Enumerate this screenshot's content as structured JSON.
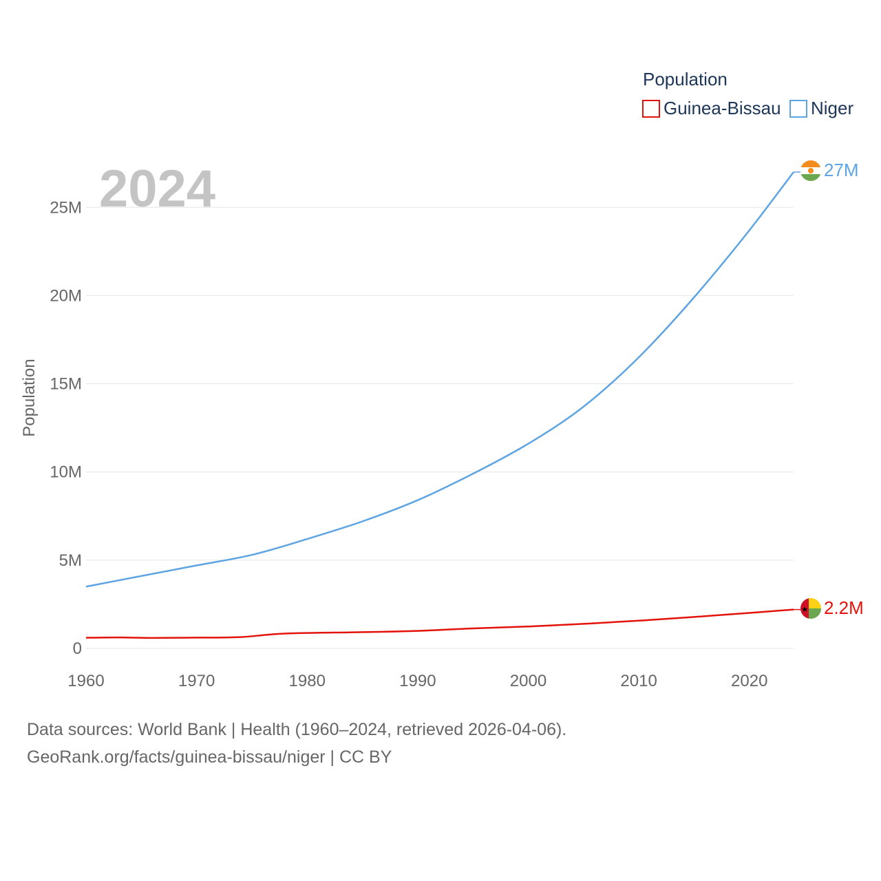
{
  "chart_data": {
    "type": "line",
    "title": "Population",
    "ylabel": "Population",
    "xlabel": "",
    "year_label": "2024",
    "xlim": [
      1960,
      2024
    ],
    "ylim": [
      0,
      27000000
    ],
    "x_ticks": [
      1960,
      1970,
      1980,
      1990,
      2000,
      2010,
      2020
    ],
    "x_tick_labels": [
      "1960",
      "1970",
      "1980",
      "1990",
      "2000",
      "2010",
      "2020"
    ],
    "y_ticks": [
      0,
      5000000,
      10000000,
      15000000,
      20000000,
      25000000
    ],
    "y_tick_labels": [
      "0",
      "5M",
      "10M",
      "15M",
      "20M",
      "25M"
    ],
    "grid": true,
    "legend_position": "top-right",
    "series": [
      {
        "name": "Guinea-Bissau",
        "color": "#e3120b",
        "end_label": "2.2M",
        "flag_icon": "guinea-bissau-flag-icon",
        "x": [
          1960,
          1963,
          1966,
          1970,
          1974,
          1978,
          1985,
          1990,
          1995,
          2000,
          2005,
          2010,
          2015,
          2020,
          2024
        ],
        "values": [
          600000,
          620000,
          590000,
          610000,
          640000,
          840000,
          920000,
          990000,
          1130000,
          1240000,
          1390000,
          1570000,
          1780000,
          2010000,
          2200000
        ]
      },
      {
        "name": "Niger",
        "color": "#5da4e3",
        "end_label": "27M",
        "flag_icon": "niger-flag-icon",
        "x": [
          1960,
          1965,
          1970,
          1975,
          1980,
          1985,
          1990,
          1995,
          2000,
          2005,
          2010,
          2015,
          2020,
          2024
        ],
        "values": [
          3500000,
          4100000,
          4700000,
          5300000,
          6200000,
          7200000,
          8400000,
          9900000,
          11600000,
          13700000,
          16500000,
          19900000,
          23700000,
          27000000
        ]
      }
    ]
  },
  "footer": {
    "line1": "Data sources: World Bank | Health (1960–2024, retrieved 2026-04-06).",
    "line2": "GeoRank.org/facts/guinea-bissau/niger | CC BY"
  }
}
